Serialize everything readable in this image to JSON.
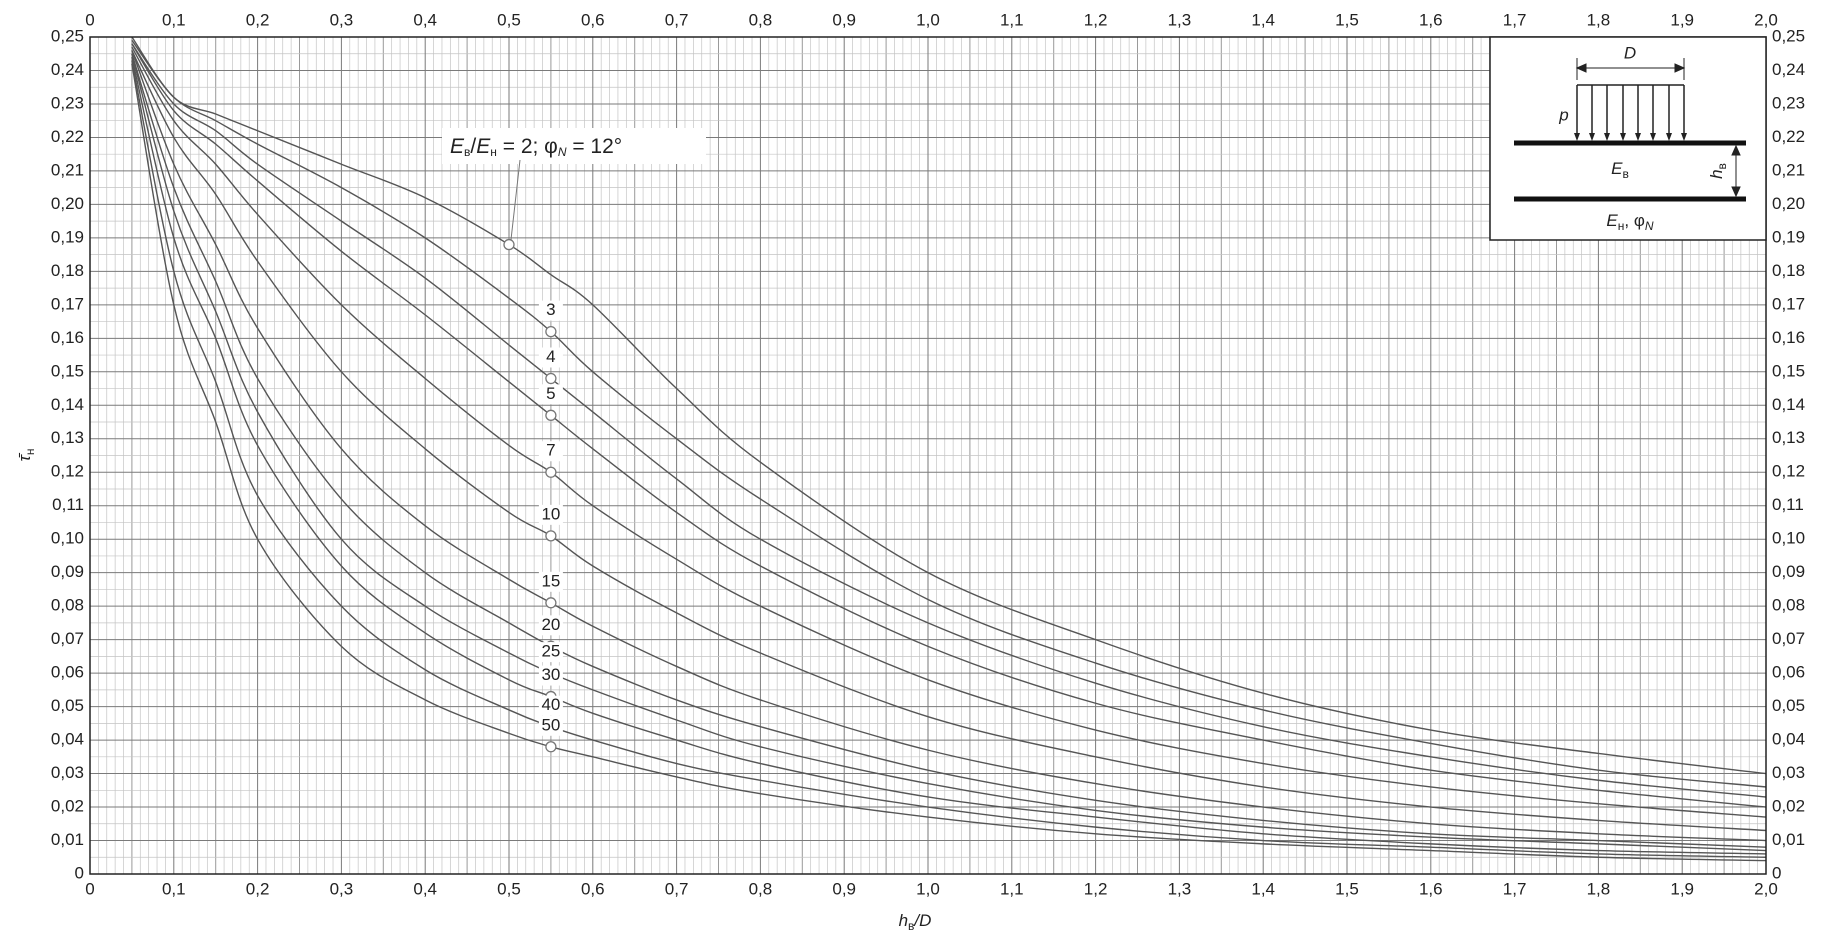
{
  "chart_data": {
    "type": "line",
    "x_label": {
      "main": "h",
      "sub": "в",
      "rest": "/D"
    },
    "y_label": {
      "main": "τ̄",
      "sub": "н"
    },
    "annotation": {
      "e1": "E",
      "s1": "в",
      "slash": "/",
      "e2": "E",
      "s2": "н",
      "eq": " = ",
      "sep": "; φ",
      "phi_sub": "N",
      "phi_value": " = 12°"
    },
    "inset": {
      "d": "D",
      "p": "p",
      "e_top": "E",
      "e_top_sub": "в",
      "h": "h",
      "h_sub": "в",
      "e_bottom": "E",
      "e_bottom_sub": "н",
      "phi": ", φ",
      "phi_sub": "N"
    },
    "x": [
      0.05,
      0.1,
      0.15,
      0.2,
      0.3,
      0.4,
      0.5,
      0.55,
      0.6,
      0.7,
      0.8,
      1.0,
      1.2,
      1.4,
      1.6,
      1.8,
      2.0
    ],
    "series": [
      {
        "name": "2",
        "color": "#555555",
        "values": [
          0.25,
          0.232,
          0.227,
          0.222,
          0.212,
          0.202,
          0.188,
          0.179,
          0.17,
          0.145,
          0.123,
          0.09,
          0.07,
          0.054,
          0.043,
          0.036,
          0.03
        ]
      },
      {
        "name": "3",
        "color": "#555555",
        "values": [
          0.249,
          0.232,
          0.225,
          0.218,
          0.205,
          0.19,
          0.172,
          0.162,
          0.15,
          0.13,
          0.112,
          0.082,
          0.063,
          0.049,
          0.039,
          0.031,
          0.026
        ]
      },
      {
        "name": "4",
        "color": "#555555",
        "values": [
          0.248,
          0.23,
          0.222,
          0.212,
          0.195,
          0.178,
          0.158,
          0.148,
          0.138,
          0.118,
          0.1,
          0.075,
          0.057,
          0.044,
          0.035,
          0.028,
          0.023
        ]
      },
      {
        "name": "5",
        "color": "#555555",
        "values": [
          0.248,
          0.228,
          0.218,
          0.207,
          0.186,
          0.167,
          0.147,
          0.137,
          0.127,
          0.108,
          0.092,
          0.068,
          0.051,
          0.04,
          0.031,
          0.025,
          0.02
        ]
      },
      {
        "name": "7",
        "color": "#555555",
        "values": [
          0.247,
          0.225,
          0.212,
          0.197,
          0.17,
          0.148,
          0.128,
          0.12,
          0.11,
          0.094,
          0.08,
          0.058,
          0.043,
          0.033,
          0.026,
          0.021,
          0.017
        ]
      },
      {
        "name": "10",
        "color": "#555555",
        "values": [
          0.246,
          0.22,
          0.203,
          0.183,
          0.15,
          0.127,
          0.108,
          0.101,
          0.092,
          0.078,
          0.066,
          0.047,
          0.035,
          0.026,
          0.02,
          0.016,
          0.013
        ]
      },
      {
        "name": "15",
        "color": "#555555",
        "values": [
          0.246,
          0.212,
          0.188,
          0.163,
          0.127,
          0.104,
          0.088,
          0.081,
          0.074,
          0.062,
          0.052,
          0.037,
          0.027,
          0.02,
          0.015,
          0.012,
          0.01
        ]
      },
      {
        "name": "20",
        "color": "#555555",
        "values": [
          0.245,
          0.205,
          0.177,
          0.148,
          0.112,
          0.09,
          0.075,
          0.068,
          0.062,
          0.052,
          0.044,
          0.031,
          0.022,
          0.016,
          0.012,
          0.01,
          0.008
        ]
      },
      {
        "name": "25",
        "color": "#555555",
        "values": [
          0.245,
          0.198,
          0.168,
          0.138,
          0.1,
          0.08,
          0.066,
          0.06,
          0.055,
          0.046,
          0.038,
          0.027,
          0.019,
          0.014,
          0.011,
          0.009,
          0.007
        ]
      },
      {
        "name": "30",
        "color": "#555555",
        "values": [
          0.244,
          0.19,
          0.16,
          0.128,
          0.092,
          0.072,
          0.058,
          0.053,
          0.048,
          0.04,
          0.033,
          0.023,
          0.017,
          0.012,
          0.009,
          0.007,
          0.006
        ]
      },
      {
        "name": "40",
        "color": "#555555",
        "values": [
          0.243,
          0.18,
          0.147,
          0.113,
          0.08,
          0.061,
          0.049,
          0.044,
          0.04,
          0.033,
          0.028,
          0.02,
          0.014,
          0.01,
          0.008,
          0.006,
          0.005
        ]
      },
      {
        "name": "50",
        "color": "#555555",
        "values": [
          0.242,
          0.17,
          0.135,
          0.1,
          0.068,
          0.052,
          0.042,
          0.038,
          0.035,
          0.029,
          0.024,
          0.017,
          0.012,
          0.009,
          0.007,
          0.005,
          0.004
        ]
      }
    ],
    "xlim": [
      0,
      2.0
    ],
    "ylim": [
      0,
      0.25
    ],
    "xticks": [
      0,
      {
        "value": 0.1,
        "label": "0,1"
      },
      {
        "value": 0.2,
        "label": "0,2"
      },
      {
        "value": 0.3,
        "label": "0,3"
      },
      {
        "value": 0.4,
        "label": "0,4"
      },
      {
        "value": 0.5,
        "label": "0,5"
      },
      {
        "value": 0.6,
        "label": "0,6"
      },
      {
        "value": 0.7,
        "label": "0,7"
      },
      {
        "value": 0.8,
        "label": "0,8"
      },
      {
        "value": 0.9,
        "label": "0,9"
      },
      {
        "value": 1.0,
        "label": "1,0"
      },
      {
        "value": 1.1,
        "label": "1,1"
      },
      {
        "value": 1.2,
        "label": "1,2"
      },
      {
        "value": 1.3,
        "label": "1,3"
      },
      {
        "value": 1.4,
        "label": "1,4"
      },
      {
        "value": 1.5,
        "label": "1,5"
      },
      {
        "value": 1.6,
        "label": "1,6"
      },
      {
        "value": 1.7,
        "label": "1,7"
      },
      {
        "value": 1.8,
        "label": "1,8"
      },
      {
        "value": 1.9,
        "label": "1,9"
      },
      {
        "value": 2.0,
        "label": "2,0"
      }
    ],
    "yticks": [
      0,
      {
        "value": 0.01,
        "label": "0,01"
      },
      {
        "value": 0.02,
        "label": "0,02"
      },
      {
        "value": 0.03,
        "label": "0,03"
      },
      {
        "value": 0.04,
        "label": "0,04"
      },
      {
        "value": 0.05,
        "label": "0,05"
      },
      {
        "value": 0.06,
        "label": "0,06"
      },
      {
        "value": 0.07,
        "label": "0,07"
      },
      {
        "value": 0.08,
        "label": "0,08"
      },
      {
        "value": 0.09,
        "label": "0,09"
      },
      {
        "value": 0.1,
        "label": "0,10"
      },
      {
        "value": 0.11,
        "label": "0,11"
      },
      {
        "value": 0.12,
        "label": "0,12"
      },
      {
        "value": 0.13,
        "label": "0,13"
      },
      {
        "value": 0.14,
        "label": "0,14"
      },
      {
        "value": 0.15,
        "label": "0,15"
      },
      {
        "value": 0.16,
        "label": "0,16"
      },
      {
        "value": 0.17,
        "label": "0,17"
      },
      {
        "value": 0.18,
        "label": "0,18"
      },
      {
        "value": 0.19,
        "label": "0,19"
      },
      {
        "value": 0.2,
        "label": "0,20"
      },
      {
        "value": 0.21,
        "label": "0,21"
      },
      {
        "value": 0.22,
        "label": "0,22"
      },
      {
        "value": 0.23,
        "label": "0,23"
      },
      {
        "value": 0.24,
        "label": "0,24"
      },
      {
        "value": 0.25,
        "label": "0,25"
      }
    ],
    "grid": true
  }
}
